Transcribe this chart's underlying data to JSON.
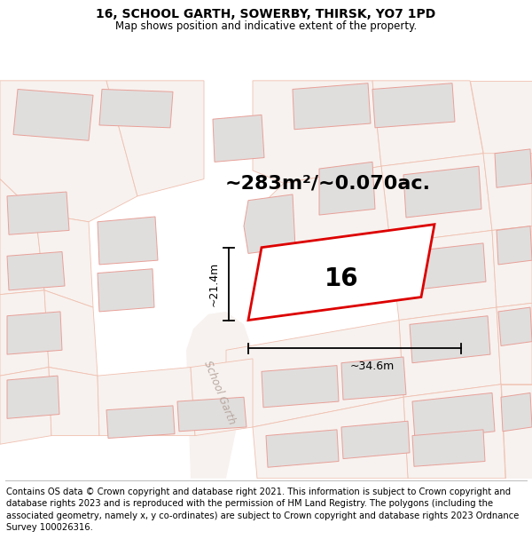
{
  "title_line1": "16, SCHOOL GARTH, SOWERBY, THIRSK, YO7 1PD",
  "title_line2": "Map shows position and indicative extent of the property.",
  "area_text": "~283m²/~0.070ac.",
  "label_number": "16",
  "dim_width": "~34.6m",
  "dim_height": "~21.4m",
  "road_label": "School Garth",
  "footer_text": "Contains OS data © Crown copyright and database right 2021. This information is subject to Crown copyright and database rights 2023 and is reproduced with the permission of HM Land Registry. The polygons (including the associated geometry, namely x, y co-ordinates) are subject to Crown copyright and database rights 2023 Ordnance Survey 100026316.",
  "bg_color": "#f7f0ed",
  "map_bg": "#ffffff",
  "plot_fill": "#ffffff",
  "plot_edge": "#dd0000",
  "bld_fill": "#e0dedd",
  "bld_edge": "#e8a098",
  "plot_outline_fill": "#f5f0ee",
  "lot_fill": "#e8e4e0",
  "lot_edge": "#e8a098",
  "title_fontsize": 10,
  "subtitle_fontsize": 8.5,
  "area_fontsize": 16,
  "label_fontsize": 20,
  "dim_fontsize": 9,
  "road_fontsize": 8.5,
  "footer_fontsize": 7.2
}
